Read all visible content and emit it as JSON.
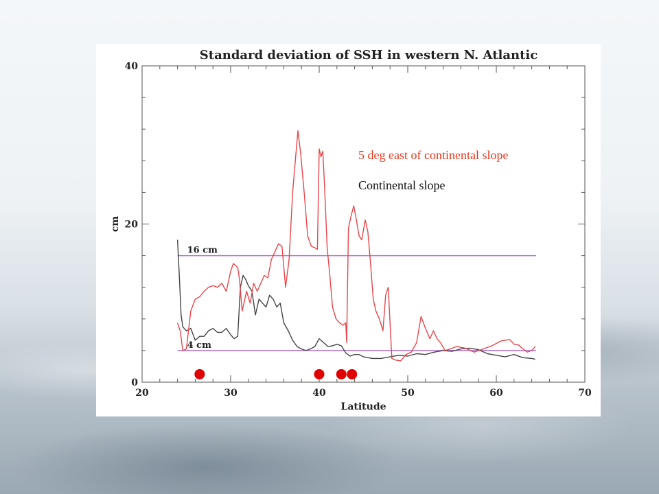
{
  "annotations": {
    "red_series_label": "5 deg east of continental slope",
    "black_series_label": "Continental slope"
  },
  "colors": {
    "red_series": "#e8454a",
    "black_series": "#444444",
    "reference_lines": "#b36fd0",
    "markers": "#e00000",
    "red_label": "#e8371c"
  },
  "chart_data": {
    "type": "line",
    "title": "Standard deviation of SSH in western N. Atlantic",
    "xlabel": "Latitude",
    "ylabel": "cm",
    "xlim": [
      20,
      70
    ],
    "ylim": [
      0,
      40
    ],
    "xticks": [
      20,
      30,
      40,
      50,
      60,
      70
    ],
    "yticks": [
      0,
      20,
      40
    ],
    "grid": false,
    "reference_lines": [
      {
        "y": 16,
        "label": "16 cm",
        "x_range": [
          24,
          64.5
        ]
      },
      {
        "y": 4,
        "label": "4 cm",
        "x_range": [
          24,
          64.5
        ]
      }
    ],
    "markers": [
      {
        "x": 26.5,
        "y": 1
      },
      {
        "x": 40,
        "y": 1
      },
      {
        "x": 42.5,
        "y": 1
      },
      {
        "x": 43.7,
        "y": 1
      }
    ],
    "series": [
      {
        "name": "5 deg east of continental slope",
        "x": [
          24,
          24.3,
          24.6,
          25,
          25.5,
          26,
          26.5,
          27,
          27.5,
          28,
          28.5,
          29,
          29.5,
          30,
          30.3,
          30.8,
          31,
          31.3,
          31.8,
          32.2,
          32.6,
          33,
          33.4,
          33.8,
          34.2,
          34.6,
          35,
          35.4,
          35.8,
          36.2,
          36.6,
          37,
          37.3,
          37.6,
          37.9,
          38.3,
          38.7,
          39.1,
          39.5,
          39.8,
          40,
          40.2,
          40.4,
          40.6,
          40.9,
          41.2,
          41.5,
          41.9,
          42.3,
          42.7,
          43,
          43.1,
          43.3,
          43.6,
          43.9,
          44.2,
          44.5,
          44.8,
          45.2,
          45.5,
          45.8,
          46.1,
          46.4,
          46.8,
          47.2,
          47.5,
          47.8,
          48.2,
          48.6,
          49.2,
          49.8,
          50.4,
          51,
          51.5,
          52,
          52.5,
          52.9,
          53.3,
          53.7,
          54.2,
          54.8,
          55.5,
          56.5,
          57.5,
          58.5,
          59.5,
          60.5,
          61.5,
          62,
          62.5,
          63,
          63.5,
          64,
          64.4
        ],
        "y": [
          7.5,
          6.5,
          4,
          4.2,
          9,
          10.5,
          10.8,
          11.5,
          12,
          12.2,
          12,
          12.5,
          11.5,
          14,
          15,
          14.5,
          13,
          9,
          11.5,
          10,
          12.5,
          11.5,
          12.5,
          13.5,
          13.2,
          15.5,
          16.5,
          17.5,
          17.2,
          12,
          15.5,
          24,
          28,
          31.8,
          29,
          24,
          18.5,
          17.2,
          17,
          16.8,
          29.5,
          28.5,
          29.2,
          25,
          17,
          13.5,
          9.5,
          8,
          7.5,
          7.2,
          7.5,
          5,
          19.5,
          21,
          22.3,
          20.5,
          18.5,
          18,
          20.5,
          19,
          15,
          10.5,
          9,
          8,
          6.5,
          11,
          12,
          3,
          2.8,
          2.7,
          3.5,
          3.8,
          5,
          8.3,
          6.8,
          5.5,
          6.5,
          5.5,
          5,
          4,
          4.2,
          4.5,
          4.3,
          3.8,
          4.2,
          4.6,
          5.2,
          5.4,
          4.8,
          4.7,
          4.2,
          3.8,
          4,
          4.5
        ]
      },
      {
        "name": "Continental slope",
        "x": [
          24,
          24.2,
          24.4,
          24.6,
          25,
          25.5,
          26,
          26.5,
          27,
          27.5,
          28,
          28.5,
          29,
          29.5,
          30,
          30.4,
          30.8,
          31.1,
          31.4,
          31.7,
          32,
          32.4,
          32.8,
          33.2,
          33.6,
          34,
          34.4,
          34.8,
          35.2,
          35.6,
          36,
          36.5,
          37,
          37.5,
          38,
          38.5,
          39,
          39.5,
          40,
          40.5,
          41,
          41.5,
          42,
          42.5,
          43,
          43.5,
          44,
          44.5,
          45,
          46,
          47,
          48,
          49,
          50,
          51,
          52,
          53,
          54,
          55,
          56,
          57,
          58,
          59,
          60,
          61,
          62,
          63,
          64,
          64.4
        ],
        "y": [
          18,
          13.5,
          8.5,
          7,
          6.5,
          6.8,
          5.3,
          5.8,
          5.8,
          6.5,
          6.8,
          6.3,
          6.3,
          6.8,
          6,
          5.5,
          5.8,
          12,
          13.5,
          13,
          12.2,
          11.5,
          8.5,
          10.5,
          10,
          9.5,
          11,
          10.5,
          9.5,
          10,
          7.5,
          6.5,
          5.3,
          4.5,
          4.2,
          4,
          4.2,
          4.5,
          5.5,
          5,
          4.5,
          4.6,
          4.8,
          4.6,
          3.7,
          3.3,
          3.5,
          3.5,
          3.2,
          3,
          3,
          3.2,
          3.4,
          3.3,
          3.6,
          3.5,
          3.8,
          4,
          3.9,
          4.2,
          4.3,
          4.1,
          3.6,
          3.4,
          3.2,
          3.5,
          3.1,
          3,
          2.9
        ]
      }
    ]
  }
}
